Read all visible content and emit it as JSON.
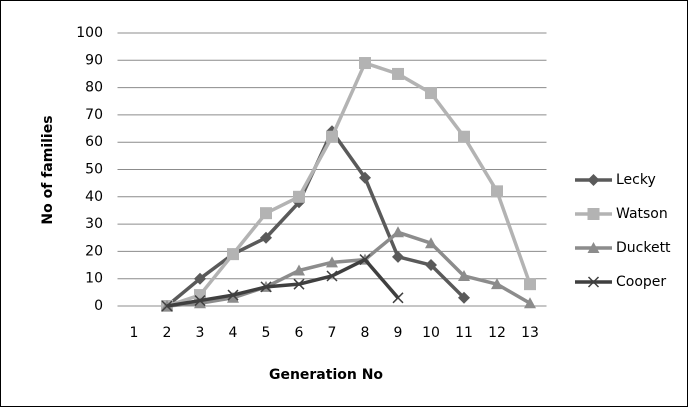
{
  "chart_data": {
    "type": "line",
    "x_label": "Generation No",
    "y_label": "No of families",
    "x": [
      1,
      2,
      3,
      4,
      5,
      6,
      7,
      8,
      9,
      10,
      11,
      12,
      13
    ],
    "series": [
      {
        "name": "Lecky",
        "color": "#5a5a5a",
        "marker": "diamond",
        "values": [
          null,
          0,
          10,
          19,
          25,
          38,
          64,
          47,
          18,
          15,
          3,
          null,
          null
        ]
      },
      {
        "name": "Watson",
        "color": "#b3b3b3",
        "marker": "square",
        "values": [
          null,
          0,
          4,
          19,
          34,
          40,
          62,
          89,
          85,
          78,
          62,
          42,
          8
        ]
      },
      {
        "name": "Duckett",
        "color": "#8c8c8c",
        "marker": "triangle",
        "values": [
          null,
          0,
          1,
          3,
          7,
          13,
          16,
          17,
          27,
          23,
          11,
          8,
          1
        ]
      },
      {
        "name": "Cooper",
        "color": "#3f3f3f",
        "marker": "x",
        "values": [
          null,
          0,
          2,
          4,
          7,
          8,
          11,
          17,
          3,
          null,
          null,
          null,
          null
        ]
      }
    ],
    "ylim": [
      0,
      100
    ],
    "yticks": [
      0,
      10,
      20,
      30,
      40,
      50,
      60,
      70,
      80,
      90,
      100
    ],
    "grid": true,
    "legend": "right"
  }
}
